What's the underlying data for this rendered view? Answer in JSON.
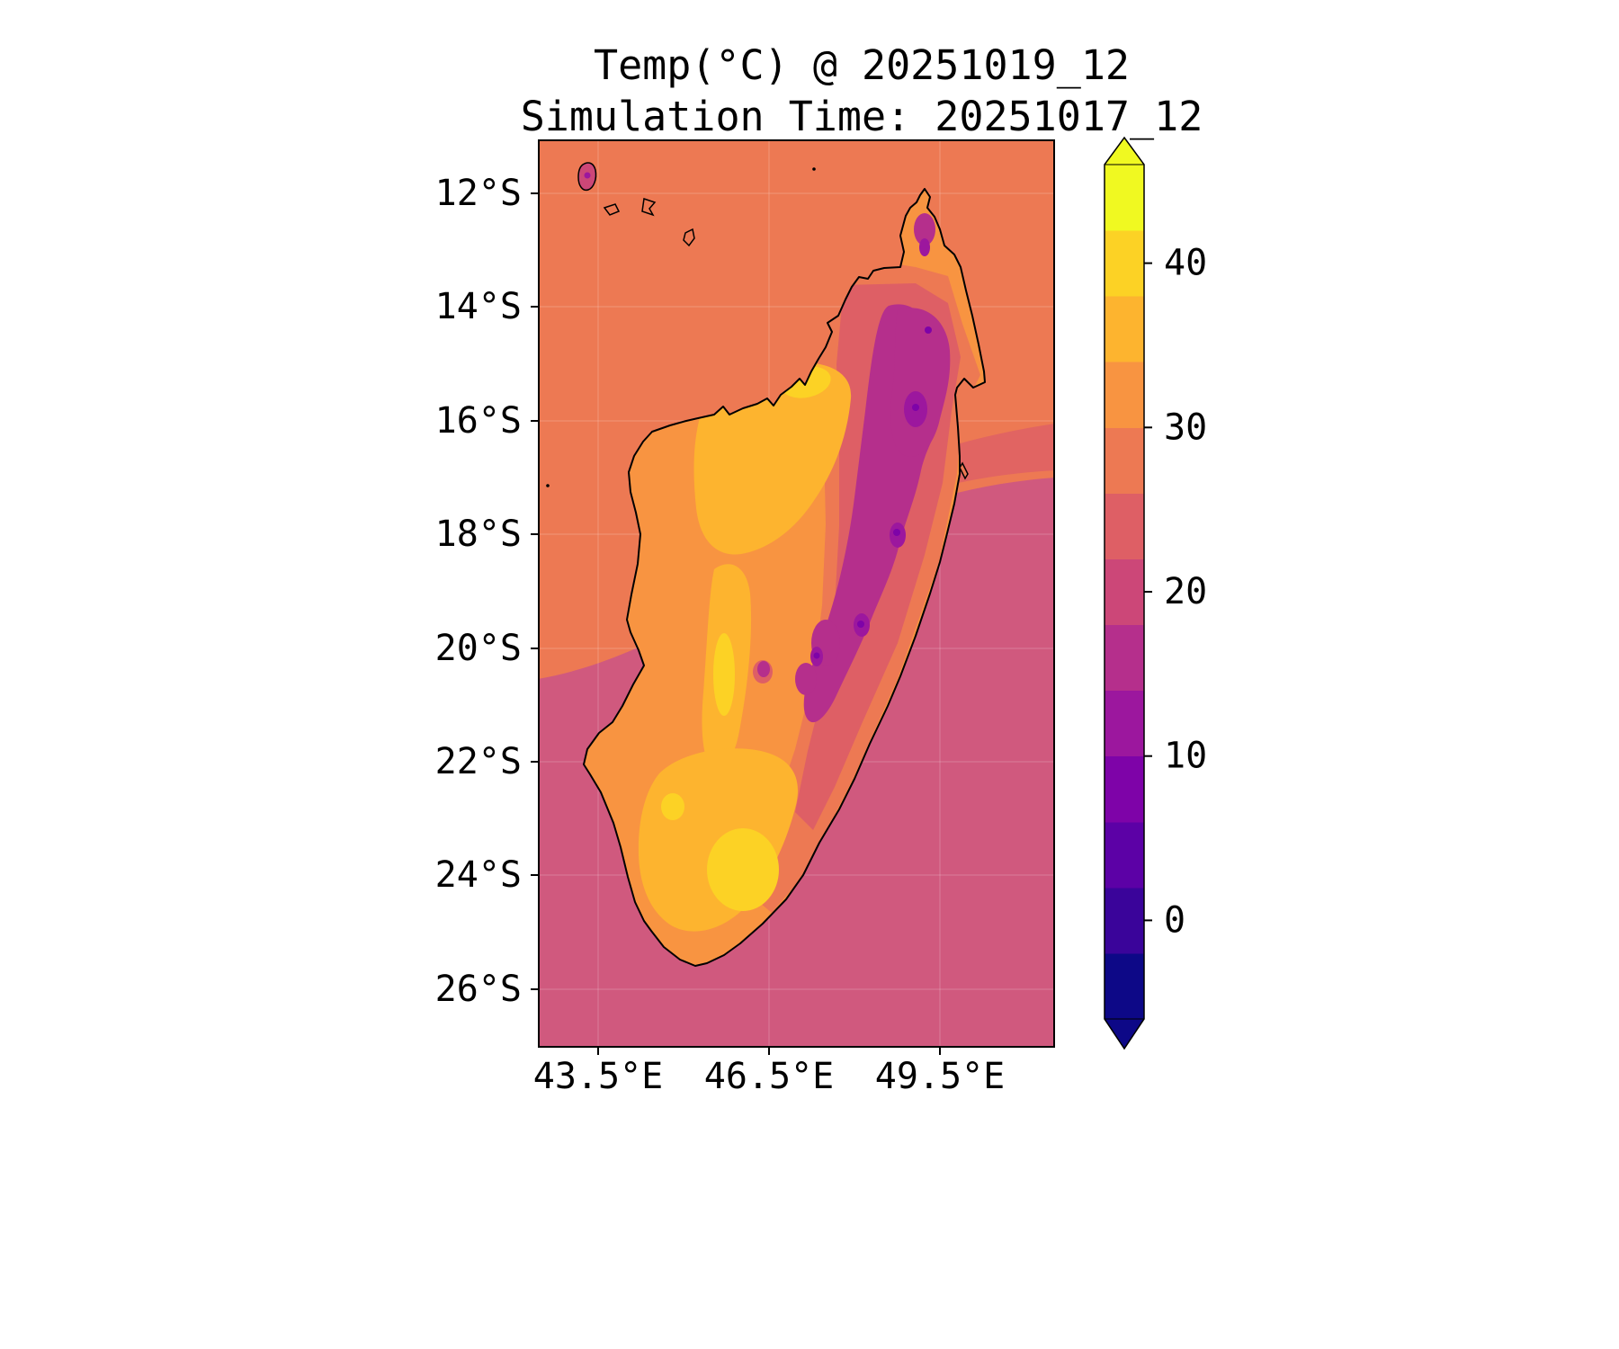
{
  "chart_data": {
    "type": "heatmap",
    "title": "Temp(°C) @ 20251019_12",
    "subtitle": "Simulation Time: 20251017_12",
    "variable": "Temperature",
    "units": "°C",
    "valid_time": "20251019_12",
    "simulation_time": "20251017_12",
    "region": "Madagascar and surrounding ocean",
    "x_ticks": [
      "43.5°E",
      "46.5°E",
      "49.5°E"
    ],
    "y_ticks": [
      "12°S",
      "14°S",
      "16°S",
      "18°S",
      "20°S",
      "22°S",
      "24°S",
      "26°S"
    ],
    "extent_estimate": {
      "lon_min_e": 42.4,
      "lon_max_e": 51.5,
      "lat_min_s": 11.0,
      "lat_max_s": 27.0
    },
    "colormap": "plasma (discrete ~4°C bands, extended both ends)",
    "grid": "faint graticule at labeled ticks",
    "colorbar": {
      "vmin": -6,
      "vmax": 46,
      "band_step": 4,
      "ticks": [
        {
          "value": 40,
          "label": "40"
        },
        {
          "value": 30,
          "label": "30"
        },
        {
          "value": 20,
          "label": "20"
        },
        {
          "value": 10,
          "label": "10"
        },
        {
          "value": 0,
          "label": "0"
        }
      ],
      "band_colors_bottom_to_top": [
        "#0d0887",
        "#3a049a",
        "#5c01a6",
        "#7e03a8",
        "#9c179e",
        "#b52f8c",
        "#cc4778",
        "#de5f65",
        "#ed7953",
        "#f89441",
        "#fdb42f",
        "#fcd225",
        "#f0f921"
      ],
      "over_color": "#f0f921",
      "under_color": "#0d0887"
    },
    "field_estimates": {
      "ocean_north_of_20S_c": "28-30 (salmon orange)",
      "ocean_south_of_20S_c": "22-26 (rose pink)",
      "west_coast_lowlands_c": "34-38 (orange)",
      "hottest_interior_west_and_south_c": "38-42 (yellow)",
      "eastern_highlands_c": "14-22 (magenta/purple band)",
      "coolest_highland_spots_c": "10-14 (dark purple dots)",
      "comoros_island_northwest_c": "~20 (magenta island)"
    }
  },
  "map_colors": {
    "ocean_north": "#ed7953",
    "ocean_transition": "#e16462",
    "ocean_south": "#d0597e",
    "land_base": "#f89441",
    "land_hot": "#fdb42f",
    "land_hottest": "#fcd225",
    "land_mild": "#ed7953",
    "land_cool": "#de5f65",
    "highlands": "#b52f8c",
    "highlands_cooler": "#9c179e",
    "highlands_coolest": "#7e03a8",
    "coastline": "#000000"
  }
}
